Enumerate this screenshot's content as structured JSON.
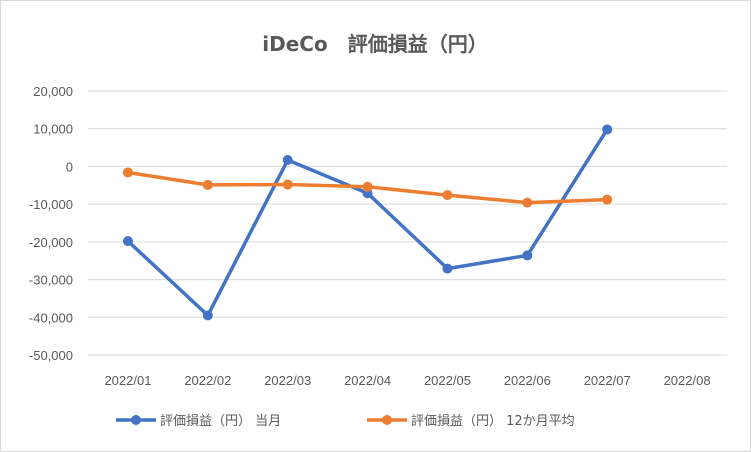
{
  "chart_data": {
    "type": "line",
    "title": "iDeCo　評価損益（円）",
    "xlabel": "",
    "ylabel": "",
    "categories": [
      "2022/01",
      "2022/02",
      "2022/03",
      "2022/04",
      "2022/05",
      "2022/06",
      "2022/07",
      "2022/08"
    ],
    "ylim": [
      -50000,
      20000
    ],
    "yticks": [
      20000,
      10000,
      0,
      -10000,
      -20000,
      -30000,
      -40000,
      -50000
    ],
    "ytick_labels": [
      "20,000",
      "10,000",
      "0",
      "-10,000",
      "-20,000",
      "-30,000",
      "-40,000",
      "-50,000"
    ],
    "grid": true,
    "legend_position": "bottom",
    "series": [
      {
        "name": "評価損益（円） 当月",
        "color": "#4472c4",
        "values": [
          -19800,
          -39500,
          1700,
          -7100,
          -27100,
          -23600,
          9800,
          null
        ]
      },
      {
        "name": "評価損益（円） 12か月平均",
        "color": "#ed7d31",
        "values": [
          -1600,
          -4900,
          -4800,
          -5400,
          -7600,
          -9600,
          -8800,
          null
        ]
      }
    ]
  }
}
